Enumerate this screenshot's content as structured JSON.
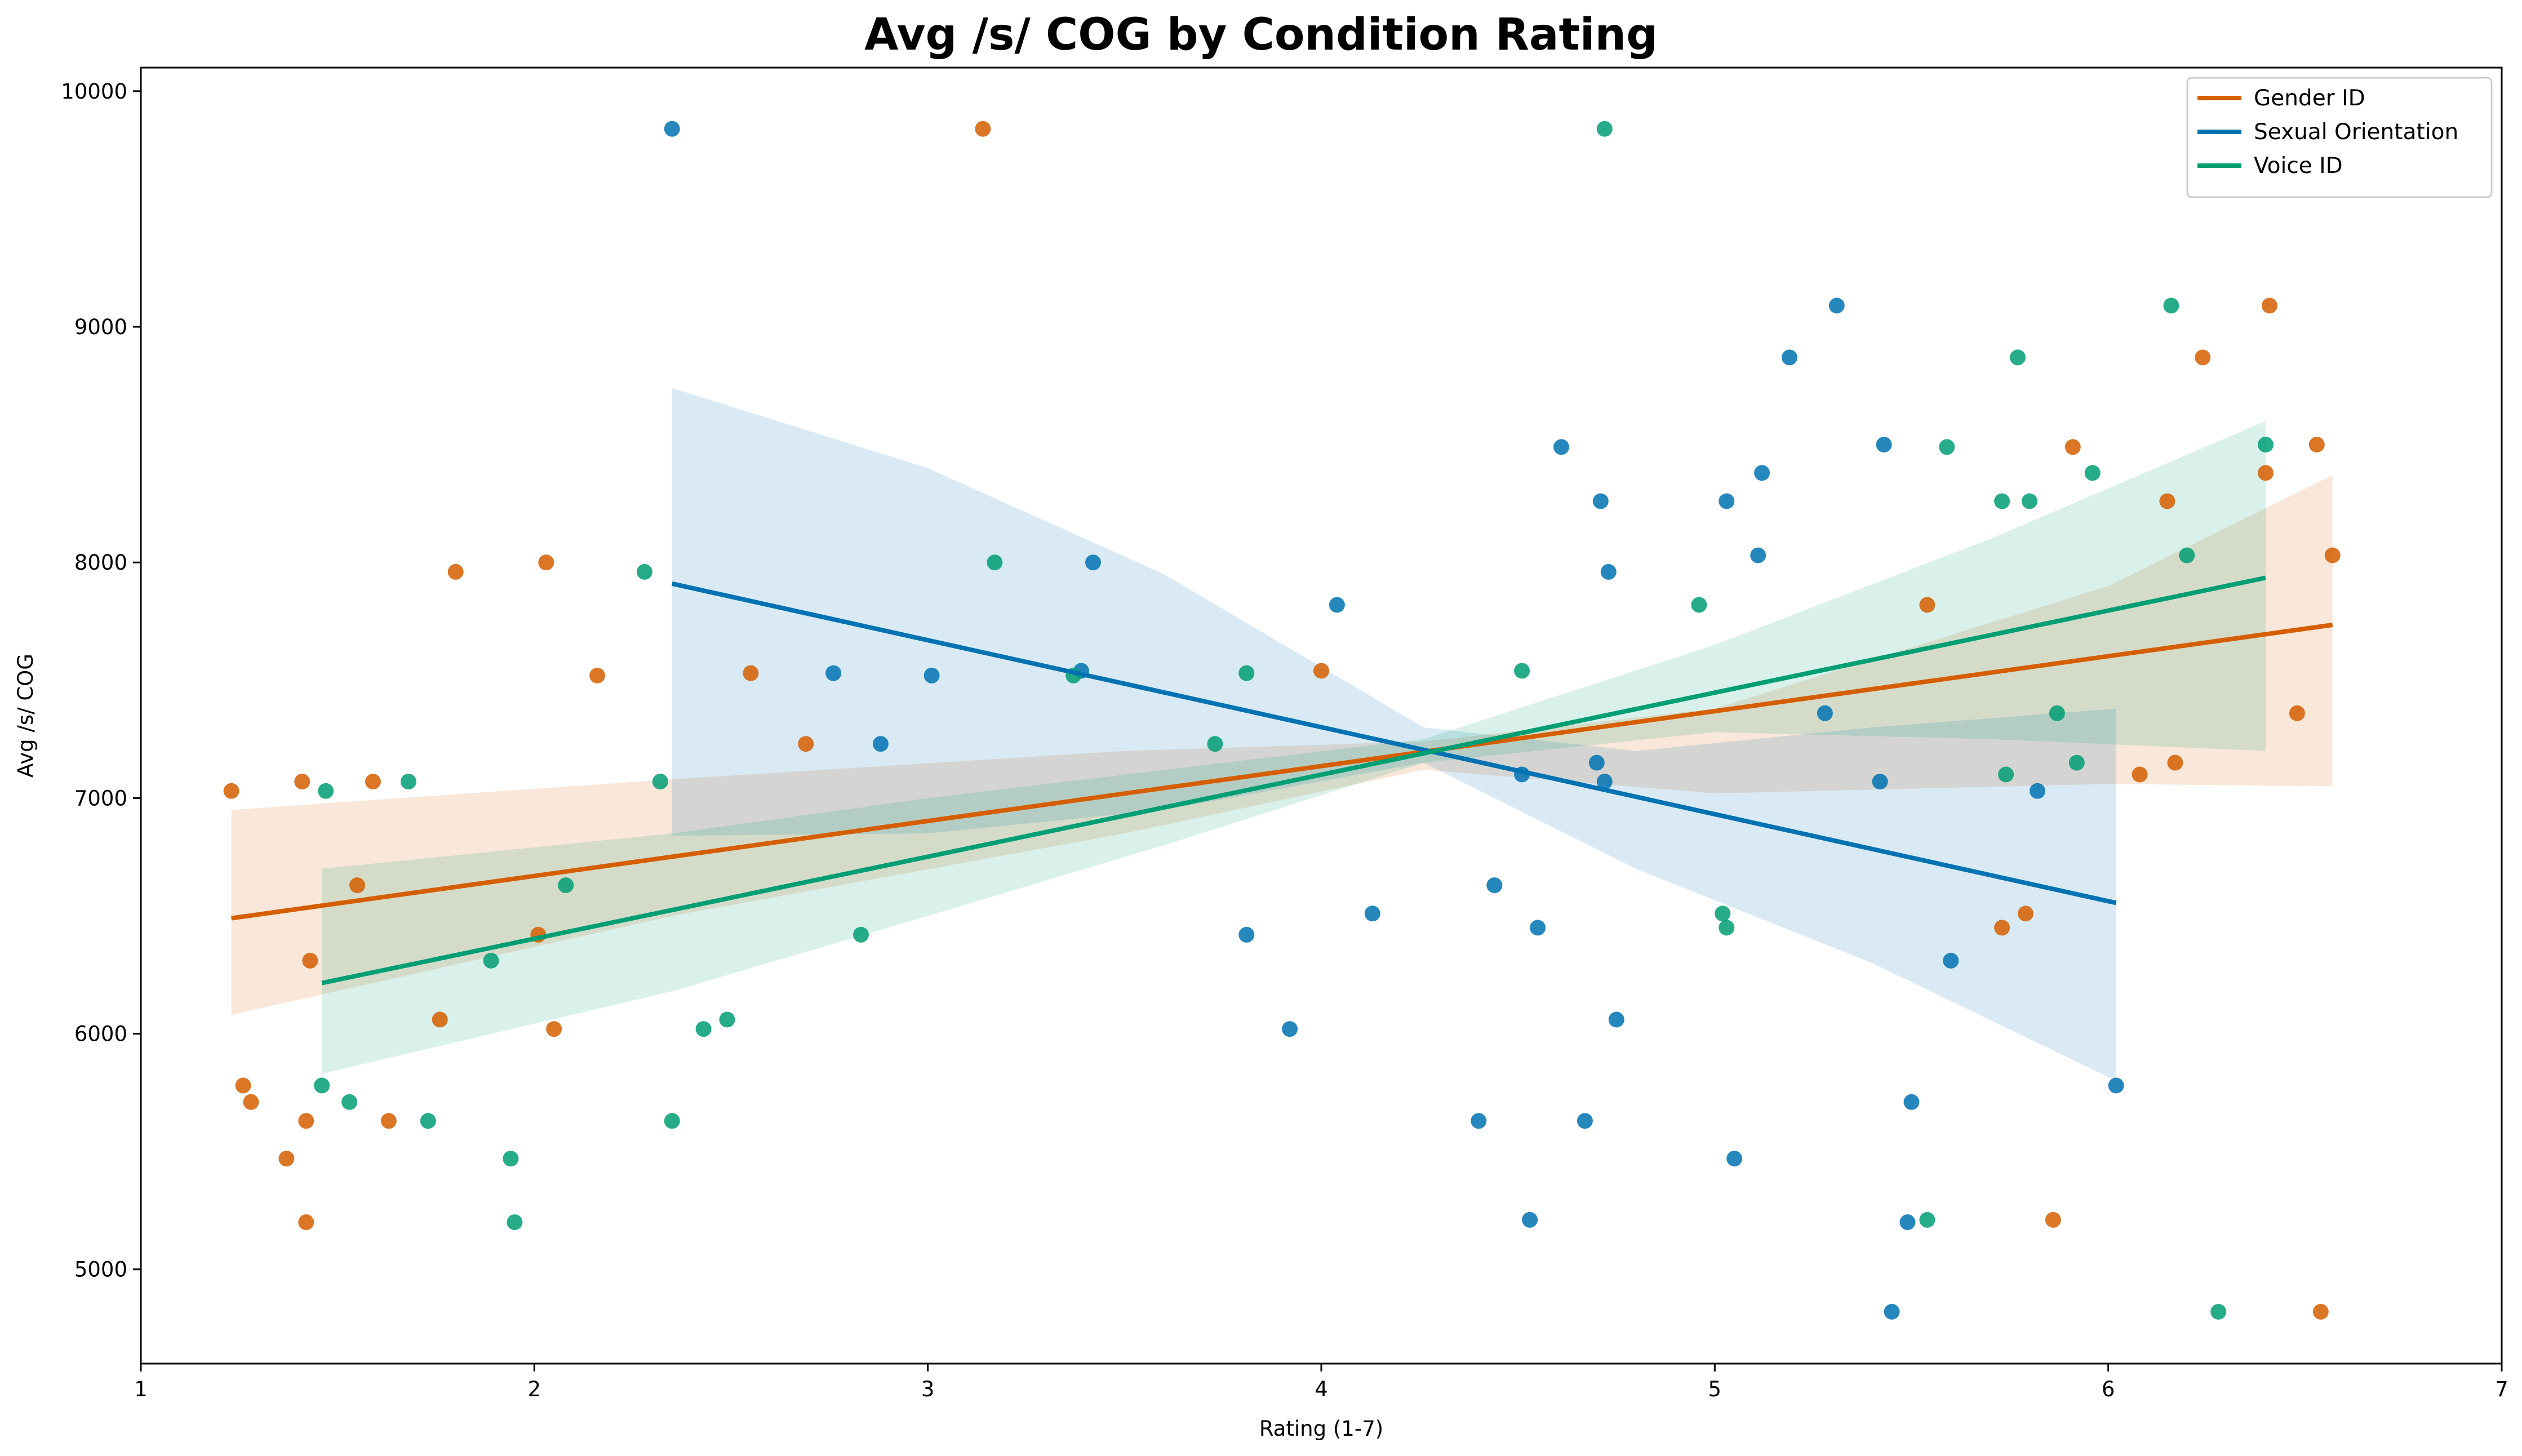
{
  "chart_data": {
    "type": "scatter",
    "title": "Avg /s/ COG by Condition Rating",
    "xlabel": "Rating (1-7)",
    "ylabel": "Avg /s/ COG",
    "xlim": [
      1,
      7
    ],
    "ylim": [
      4600,
      10100
    ],
    "xticks": [
      "1",
      "2",
      "3",
      "4",
      "5",
      "6",
      "7"
    ],
    "yticks": [
      "5000",
      "6000",
      "7000",
      "8000",
      "9000",
      "10000"
    ],
    "grid": false,
    "legend_position": "top-right",
    "series": [
      {
        "name": "Gender ID",
        "color": "#D55E00",
        "regression": {
          "x": [
            1.23,
            6.57
          ],
          "y": [
            6490,
            7735
          ]
        },
        "ci_upper": [
          [
            1.23,
            6950
          ],
          [
            2.35,
            7080
          ],
          [
            3.5,
            7200
          ],
          [
            4.26,
            7240
          ],
          [
            5.0,
            7380
          ],
          [
            6.0,
            7900
          ],
          [
            6.57,
            8370
          ]
        ],
        "ci_lower": [
          [
            1.23,
            6080
          ],
          [
            2.35,
            6500
          ],
          [
            3.5,
            6850
          ],
          [
            4.26,
            7120
          ],
          [
            5.0,
            7020
          ],
          [
            6.0,
            7060
          ],
          [
            6.57,
            7050
          ]
        ],
        "points": [
          [
            1.23,
            7030
          ],
          [
            1.26,
            5780
          ],
          [
            1.28,
            5710
          ],
          [
            1.37,
            5470
          ],
          [
            1.41,
            7070
          ],
          [
            1.42,
            5200
          ],
          [
            1.42,
            5630
          ],
          [
            1.43,
            6310
          ],
          [
            1.55,
            6630
          ],
          [
            1.59,
            7070
          ],
          [
            1.63,
            5630
          ],
          [
            1.76,
            6060
          ],
          [
            1.8,
            7960
          ],
          [
            2.01,
            6420
          ],
          [
            2.03,
            8000
          ],
          [
            2.05,
            6020
          ],
          [
            2.16,
            7520
          ],
          [
            2.55,
            7530
          ],
          [
            2.69,
            7230
          ],
          [
            3.14,
            9840
          ],
          [
            4.0,
            7540
          ],
          [
            5.54,
            7820
          ],
          [
            5.73,
            6450
          ],
          [
            5.79,
            6510
          ],
          [
            5.86,
            5210
          ],
          [
            5.91,
            8490
          ],
          [
            6.08,
            7100
          ],
          [
            6.15,
            8260
          ],
          [
            6.17,
            7150
          ],
          [
            6.24,
            8870
          ],
          [
            6.4,
            8380
          ],
          [
            6.41,
            9090
          ],
          [
            6.48,
            7360
          ],
          [
            6.53,
            8500
          ],
          [
            6.54,
            4820
          ],
          [
            6.57,
            8030
          ]
        ]
      },
      {
        "name": "Sexual Orientation",
        "color": "#0072B2",
        "regression": {
          "x": [
            2.35,
            6.02
          ],
          "y": [
            7910,
            6555
          ]
        },
        "ci_upper": [
          [
            2.35,
            8740
          ],
          [
            3.0,
            8400
          ],
          [
            3.6,
            7950
          ],
          [
            4.26,
            7300
          ],
          [
            4.8,
            7200
          ],
          [
            5.4,
            7300
          ],
          [
            6.02,
            7380
          ]
        ],
        "ci_lower": [
          [
            2.35,
            6840
          ],
          [
            3.0,
            6850
          ],
          [
            3.6,
            6950
          ],
          [
            4.26,
            7150
          ],
          [
            4.8,
            6700
          ],
          [
            5.4,
            6300
          ],
          [
            6.02,
            5800
          ]
        ],
        "points": [
          [
            2.35,
            9840
          ],
          [
            2.76,
            7530
          ],
          [
            2.88,
            7230
          ],
          [
            3.01,
            7520
          ],
          [
            3.39,
            7540
          ],
          [
            3.42,
            8000
          ],
          [
            3.81,
            6420
          ],
          [
            3.92,
            6020
          ],
          [
            4.04,
            7820
          ],
          [
            4.13,
            6510
          ],
          [
            4.4,
            5630
          ],
          [
            4.44,
            6630
          ],
          [
            4.51,
            7100
          ],
          [
            4.53,
            5210
          ],
          [
            4.55,
            6450
          ],
          [
            4.61,
            8490
          ],
          [
            4.67,
            5630
          ],
          [
            4.7,
            7150
          ],
          [
            4.71,
            8260
          ],
          [
            4.72,
            7070
          ],
          [
            4.73,
            7960
          ],
          [
            4.75,
            6060
          ],
          [
            5.03,
            8260
          ],
          [
            5.05,
            5470
          ],
          [
            5.11,
            8030
          ],
          [
            5.12,
            8380
          ],
          [
            5.19,
            8870
          ],
          [
            5.28,
            7360
          ],
          [
            5.31,
            9090
          ],
          [
            5.42,
            7070
          ],
          [
            5.43,
            8500
          ],
          [
            5.45,
            4820
          ],
          [
            5.49,
            5200
          ],
          [
            5.5,
            5710
          ],
          [
            5.6,
            6310
          ],
          [
            5.82,
            7030
          ],
          [
            6.02,
            5780
          ]
        ]
      },
      {
        "name": "Voice ID",
        "color": "#009E73",
        "regression": {
          "x": [
            1.46,
            6.4
          ],
          "y": [
            6215,
            7935
          ]
        },
        "ci_upper": [
          [
            1.46,
            6700
          ],
          [
            2.35,
            6850
          ],
          [
            3.0,
            7000
          ],
          [
            3.6,
            7120
          ],
          [
            4.26,
            7250
          ],
          [
            5.0,
            7650
          ],
          [
            5.7,
            8100
          ],
          [
            6.4,
            8600
          ]
        ],
        "ci_lower": [
          [
            1.46,
            5830
          ],
          [
            2.35,
            6180
          ],
          [
            3.0,
            6500
          ],
          [
            3.6,
            6800
          ],
          [
            4.26,
            7150
          ],
          [
            5.0,
            7280
          ],
          [
            5.7,
            7250
          ],
          [
            6.4,
            7200
          ]
        ],
        "points": [
          [
            1.46,
            5780
          ],
          [
            1.47,
            7030
          ],
          [
            1.53,
            5710
          ],
          [
            1.68,
            7070
          ],
          [
            1.73,
            5630
          ],
          [
            1.89,
            6310
          ],
          [
            1.94,
            5470
          ],
          [
            1.95,
            5200
          ],
          [
            2.08,
            6630
          ],
          [
            2.28,
            7960
          ],
          [
            2.32,
            7070
          ],
          [
            2.35,
            5630
          ],
          [
            2.43,
            6020
          ],
          [
            2.49,
            6060
          ],
          [
            2.83,
            6420
          ],
          [
            3.17,
            8000
          ],
          [
            3.37,
            7520
          ],
          [
            3.73,
            7230
          ],
          [
            3.81,
            7530
          ],
          [
            4.51,
            7540
          ],
          [
            4.72,
            9840
          ],
          [
            4.96,
            7820
          ],
          [
            5.02,
            6510
          ],
          [
            5.03,
            6450
          ],
          [
            5.54,
            5210
          ],
          [
            5.59,
            8490
          ],
          [
            5.73,
            8260
          ],
          [
            5.74,
            7100
          ],
          [
            5.77,
            8870
          ],
          [
            5.8,
            8260
          ],
          [
            5.87,
            7360
          ],
          [
            5.92,
            7150
          ],
          [
            5.96,
            8380
          ],
          [
            6.16,
            9090
          ],
          [
            6.2,
            8030
          ],
          [
            6.28,
            4820
          ],
          [
            6.4,
            8500
          ]
        ]
      }
    ]
  }
}
